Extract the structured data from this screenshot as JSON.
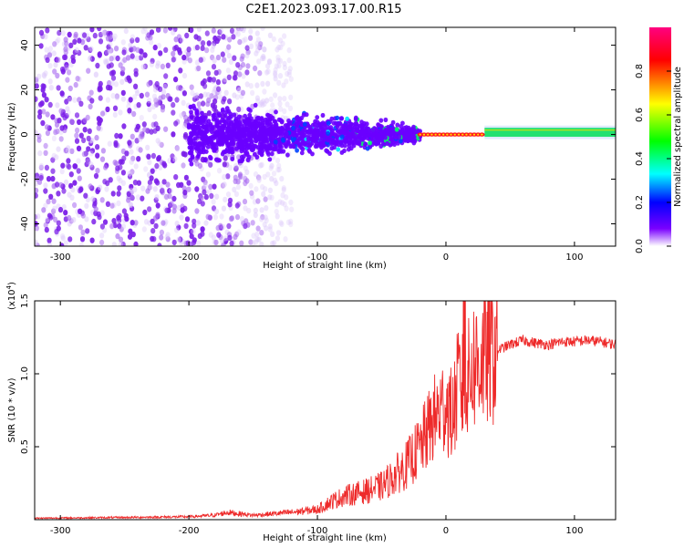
{
  "title": "C2E1.2023.093.17.00.R15",
  "colors": {
    "snr_line": "#ee2a2a",
    "colorbar_stops": [
      "#ffffff",
      "#7a00ff",
      "#0000ff",
      "#00ffff",
      "#00ff00",
      "#ffff00",
      "#ff0000",
      "#ff0080"
    ]
  },
  "chart_data": [
    {
      "type": "heatmap",
      "xlabel": "Height of straight line (km)",
      "ylabel": "Frequency (Hz)",
      "xlim": [
        -320,
        132
      ],
      "ylim": [
        -50,
        48
      ],
      "xticks": [
        -300,
        -200,
        -100,
        0,
        100
      ],
      "yticks": [
        -40,
        -20,
        0,
        20,
        40
      ],
      "colorbar": {
        "label": "Normalized spectral amplitude",
        "range": [
          0,
          1
        ],
        "ticks": [
          "0.0",
          "0.2",
          "0.4",
          "0.6",
          "0.8"
        ]
      },
      "features": [
        {
          "x_range": [
            -320,
            -120
          ],
          "freq_range": [
            -50,
            48
          ],
          "amplitude": 0.05,
          "description": "broad noise"
        },
        {
          "x_range": [
            -200,
            -20
          ],
          "freq_center": 0,
          "freq_halfwidth": [
            18,
            5
          ],
          "amplitude": [
            0.15,
            0.35
          ]
        },
        {
          "x_range": [
            -20,
            30
          ],
          "freq_center": 0,
          "freq_halfwidth": 2,
          "amplitude": 0.95
        },
        {
          "x_range": [
            30,
            132
          ],
          "freq_center": 1,
          "freq_halfwidth": 2,
          "amplitude": [
            0.4,
            0.35
          ]
        }
      ]
    },
    {
      "type": "line",
      "xlabel": "Height of straight line (km)",
      "ylabel": "SNR (10 * v/v)",
      "y_multiplier": "(x10",
      "y_multiplier_exp": "4",
      "xlim": [
        -320,
        132
      ],
      "ylim": [
        0,
        15000
      ],
      "xticks": [
        -300,
        -200,
        -100,
        0,
        100
      ],
      "ytick_labels": [
        "0.5",
        "1.0",
        "1.5"
      ],
      "ytick_values": [
        5000,
        10000,
        15000
      ],
      "series": [
        {
          "x": [
            -320,
            -250,
            -200,
            -180,
            -170,
            -150,
            -120,
            -100,
            -90,
            -80,
            -70,
            -60,
            -50,
            -40,
            -30,
            -20,
            -10,
            0,
            5,
            10,
            15,
            20,
            30,
            40,
            50,
            60,
            70,
            80,
            90,
            100,
            110,
            120,
            132
          ],
          "values": [
            100,
            150,
            200,
            300,
            500,
            300,
            500,
            700,
            1200,
            1600,
            1800,
            2000,
            2300,
            3000,
            3800,
            5000,
            6800,
            8000,
            7000,
            9500,
            8500,
            10500,
            11200,
            11600,
            12000,
            12300,
            12100,
            12000,
            12200,
            12200,
            12300,
            12200,
            12000
          ]
        }
      ]
    }
  ]
}
